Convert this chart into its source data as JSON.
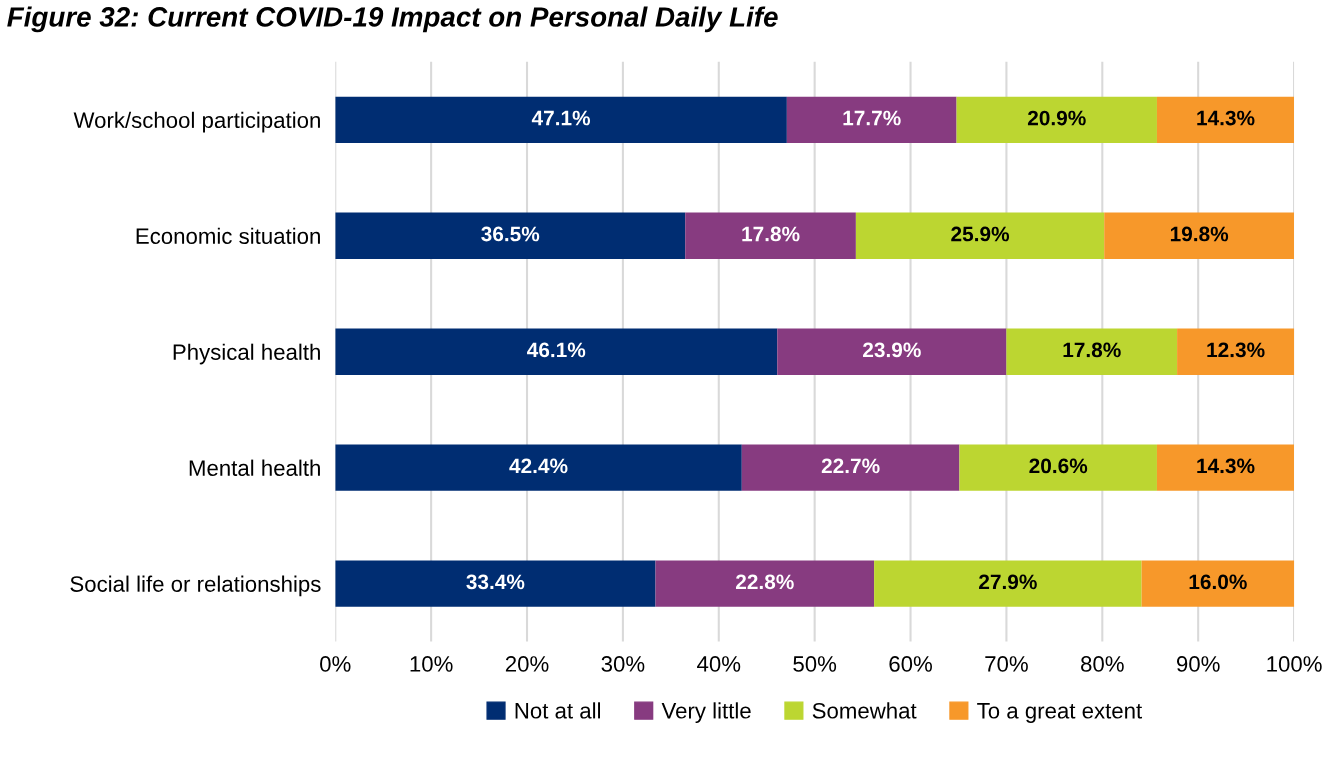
{
  "chart_data": {
    "type": "bar",
    "orientation": "horizontal",
    "stacked": true,
    "title": "Figure 32: Current COVID-19 Impact on Personal Daily Life",
    "categories": [
      "Work/school participation",
      "Economic situation",
      "Physical health",
      "Mental health",
      "Social life or relationships"
    ],
    "series": [
      {
        "name": "Not at all",
        "color": "#002d72",
        "values": [
          47.1,
          36.5,
          46.1,
          42.4,
          33.4
        ],
        "value_labels": [
          "47.1%",
          "36.5%",
          "46.1%",
          "42.4%",
          "33.4%"
        ]
      },
      {
        "name": "Very little",
        "color": "#873b80",
        "values": [
          17.7,
          17.8,
          23.9,
          22.7,
          22.8
        ],
        "value_labels": [
          "17.7%",
          "17.8%",
          "23.9%",
          "22.7%",
          "22.8%"
        ]
      },
      {
        "name": "Somewhat",
        "color": "#bcd631",
        "values": [
          20.9,
          25.9,
          17.8,
          20.6,
          27.9
        ],
        "value_labels": [
          "20.9%",
          "25.9%",
          "17.8%",
          "20.6%",
          "27.9%"
        ]
      },
      {
        "name": "To a great extent",
        "color": "#f7982a",
        "values": [
          14.3,
          19.8,
          12.3,
          14.3,
          16.0
        ],
        "value_labels": [
          "14.3%",
          "19.8%",
          "12.3%",
          "14.3%",
          "16.0%"
        ]
      }
    ],
    "xlim": [
      0,
      100
    ],
    "xticks": [
      {
        "value": 0,
        "label": "0%"
      },
      {
        "value": 10,
        "label": "10%"
      },
      {
        "value": 20,
        "label": "20%"
      },
      {
        "value": 30,
        "label": "30%"
      },
      {
        "value": 40,
        "label": "40%"
      },
      {
        "value": 50,
        "label": "50%"
      },
      {
        "value": 60,
        "label": "60%"
      },
      {
        "value": 70,
        "label": "70%"
      },
      {
        "value": 80,
        "label": "80%"
      },
      {
        "value": 90,
        "label": "90%"
      },
      {
        "value": 100,
        "label": "100%"
      }
    ],
    "grid": "x",
    "legend": "bottom"
  }
}
